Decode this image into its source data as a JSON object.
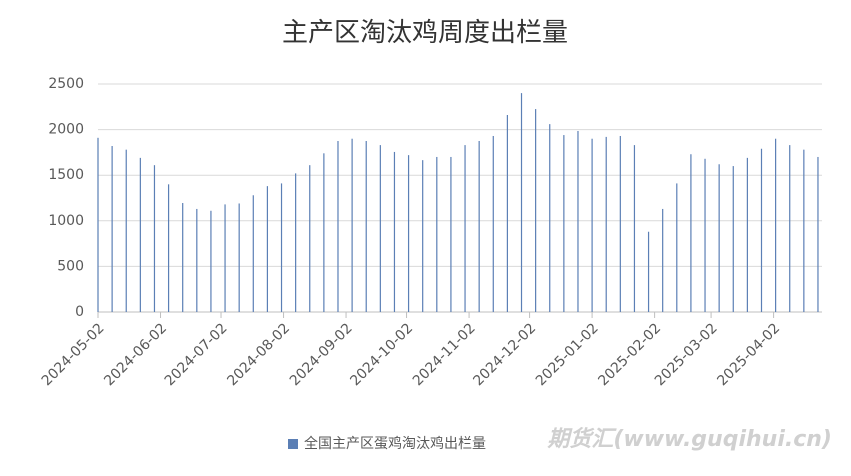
{
  "chart_data": {
    "type": "bar",
    "title": "主产区淘汰鸡周度出栏量",
    "x": [
      "2024-05-02",
      "2024-05-09",
      "2024-05-16",
      "2024-05-23",
      "2024-05-30",
      "2024-06-06",
      "2024-06-13",
      "2024-06-20",
      "2024-06-27",
      "2024-07-04",
      "2024-07-11",
      "2024-07-18",
      "2024-07-25",
      "2024-08-01",
      "2024-08-08",
      "2024-08-15",
      "2024-08-22",
      "2024-08-29",
      "2024-09-05",
      "2024-09-12",
      "2024-09-19",
      "2024-09-26",
      "2024-10-03",
      "2024-10-10",
      "2024-10-17",
      "2024-10-24",
      "2024-10-31",
      "2024-11-07",
      "2024-11-14",
      "2024-11-21",
      "2024-11-28",
      "2024-12-05",
      "2024-12-12",
      "2024-12-19",
      "2024-12-26",
      "2025-01-02",
      "2025-01-09",
      "2025-01-16",
      "2025-01-23",
      "2025-01-30",
      "2025-02-06",
      "2025-02-13",
      "2025-02-20",
      "2025-02-27",
      "2025-03-06",
      "2025-03-13",
      "2025-03-20",
      "2025-03-27",
      "2025-04-03",
      "2025-04-10",
      "2025-04-17",
      "2025-04-24"
    ],
    "series": [
      {
        "name": "全国主产区蛋鸡淘汰鸡出栏量",
        "color": "#5b7fb5",
        "values": [
          1910,
          1820,
          1780,
          1690,
          1610,
          1400,
          1195,
          1130,
          1110,
          1180,
          1190,
          1280,
          1380,
          1410,
          1520,
          1610,
          1740,
          1875,
          1900,
          1875,
          1830,
          1755,
          1720,
          1665,
          1700,
          1700,
          1830,
          1875,
          1930,
          2160,
          2400,
          2225,
          2060,
          1940,
          1985,
          1900,
          1920,
          1930,
          1830,
          880,
          1130,
          1410,
          1730,
          1680,
          1620,
          1600,
          1690,
          1790,
          1900,
          1830,
          1780,
          1700
        ]
      }
    ],
    "xlim": [
      "2024-05-02",
      "2025-04-26"
    ],
    "xticks": [
      "2024-05-02",
      "2024-06-02",
      "2024-07-02",
      "2024-08-02",
      "2024-09-02",
      "2024-10-02",
      "2024-11-02",
      "2024-12-02",
      "2025-01-02",
      "2025-02-02",
      "2025-03-02",
      "2025-04-02"
    ],
    "ylim": [
      0,
      2500
    ],
    "yticks": [
      0,
      500,
      1000,
      1500,
      2000,
      2500
    ],
    "grid": true,
    "legend": "bottom",
    "watermark": "期货汇(www.guqihui.cn)"
  }
}
